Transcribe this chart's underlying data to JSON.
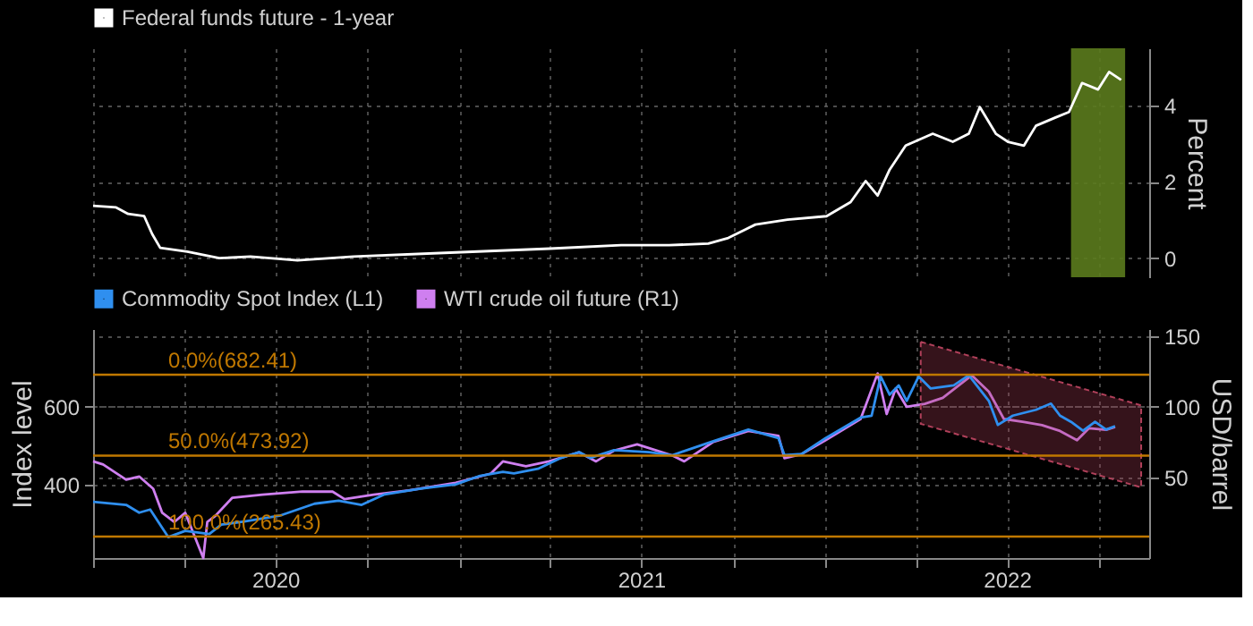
{
  "chart_data": [
    {
      "type": "line",
      "xlim": [
        "2020-01-01",
        "2022-11-20"
      ],
      "xticks": [
        {
          "value": "2020-01-01",
          "label": null
        },
        {
          "value": "2020-04-01",
          "label": null
        },
        {
          "value": "2020-07-01",
          "label": null
        },
        {
          "value": "2020-10-01",
          "label": null
        },
        {
          "value": "2021-01-01",
          "label": null
        },
        {
          "value": "2021-04-01",
          "label": null
        },
        {
          "value": "2021-07-01",
          "label": null
        },
        {
          "value": "2021-10-01",
          "label": null
        },
        {
          "value": "2022-01-01",
          "label": null
        },
        {
          "value": "2022-04-01",
          "label": null
        },
        {
          "value": "2022-07-01",
          "label": null
        },
        {
          "value": "2022-10-01",
          "label": null
        }
      ],
      "y2lim": [
        -0.5,
        5.5
      ],
      "y2ticks": [
        0,
        2,
        4
      ],
      "y2label": "Percent",
      "grid": true,
      "legend": "top left",
      "tick_labels": "y",
      "bands": [
        {
          "axis": "x",
          "from": "2022-09-03",
          "to": "2022-10-27",
          "color": "#5b7b1d"
        }
      ],
      "series": [
        {
          "name": "Federal funds future - 1-year",
          "color": "#ffffff",
          "axis": "y2",
          "x": [
            "2020-01-01",
            "2020-01-24",
            "2020-02-05",
            "2020-02-21",
            "2020-02-29",
            "2020-03-08",
            "2020-04-04",
            "2020-05-06",
            "2020-06-06",
            "2020-07-23",
            "2020-09-17",
            "2020-12-28",
            "2021-04-01",
            "2021-06-11",
            "2021-07-29",
            "2021-09-06",
            "2021-09-26",
            "2021-10-23",
            "2021-11-24",
            "2022-01-02",
            "2022-01-26",
            "2022-02-10",
            "2022-02-22",
            "2022-03-06",
            "2022-03-22",
            "2022-04-18",
            "2022-05-08",
            "2022-05-24",
            "2022-06-04",
            "2022-06-20",
            "2022-07-02",
            "2022-07-18",
            "2022-07-30",
            "2022-08-18",
            "2022-09-01",
            "2022-09-14",
            "2022-09-30",
            "2022-10-11",
            "2022-10-23"
          ],
          "values": [
            1.37,
            1.33,
            1.16,
            1.1,
            0.63,
            0.27,
            0.17,
            0,
            0.04,
            -0.06,
            0.04,
            0.15,
            0.25,
            0.34,
            0.34,
            0.38,
            0.53,
            0.88,
            1.01,
            1.1,
            1.47,
            2.02,
            1.64,
            2.32,
            2.95,
            3.26,
            3.05,
            3.26,
            3.96,
            3.26,
            3.05,
            2.95,
            3.47,
            3.68,
            3.83,
            4.59,
            4.42,
            4.88,
            4.67
          ]
        }
      ]
    },
    {
      "type": "line",
      "xlim": [
        "2020-01-01",
        "2022-11-20"
      ],
      "xticks": [
        {
          "value": "2020-01-01",
          "label": null
        },
        {
          "value": "2020-04-01",
          "label": null
        },
        {
          "value": "2020-07-01",
          "label": "2020"
        },
        {
          "value": "2020-10-01",
          "label": null
        },
        {
          "value": "2021-01-01",
          "label": null
        },
        {
          "value": "2021-04-01",
          "label": null
        },
        {
          "value": "2021-07-01",
          "label": "2021"
        },
        {
          "value": "2021-10-01",
          "label": null
        },
        {
          "value": "2022-01-01",
          "label": null
        },
        {
          "value": "2022-04-01",
          "label": null
        },
        {
          "value": "2022-07-01",
          "label": "2022"
        },
        {
          "value": "2022-10-01",
          "label": null
        }
      ],
      "ylim": [
        210,
        800
      ],
      "yticks": [
        400,
        600
      ],
      "ylabel": "Index level",
      "y2lim": [
        -7,
        155
      ],
      "y2ticks": [
        50,
        100,
        150
      ],
      "y2label": "USD/barrel",
      "grid": true,
      "legend": "top left",
      "ref_lines": [
        {
          "axis": "y",
          "value": 682.41,
          "label": "0.0%(682.41)",
          "color": "#c07800"
        },
        {
          "axis": "y",
          "value": 473.92,
          "label": "50.0%(473.92)",
          "color": "#c07800"
        },
        {
          "axis": "y",
          "value": 265.43,
          "label": "100.0%(265.43)",
          "color": "#c07800"
        }
      ],
      "series": [
        {
          "name": "Commodity Spot Index (L1)",
          "color": "#2f8fef",
          "axis": "y",
          "x": [
            "2020-01-01",
            "2020-02-03",
            "2020-02-16",
            "2020-02-27",
            "2020-03-16",
            "2020-04-02",
            "2020-04-26",
            "2020-05-08",
            "2020-05-31",
            "2020-07-05",
            "2020-08-09",
            "2020-09-02",
            "2020-09-25",
            "2020-10-18",
            "2020-11-23",
            "2020-12-28",
            "2021-01-20",
            "2021-02-13",
            "2021-02-24",
            "2021-03-20",
            "2021-04-12",
            "2021-04-30",
            "2021-05-11",
            "2021-06-04",
            "2021-07-09",
            "2021-08-01",
            "2021-09-05",
            "2021-10-16",
            "2021-11-15",
            "2021-11-21",
            "2021-12-08",
            "2022-01-01",
            "2022-02-05",
            "2022-02-16",
            "2022-02-25",
            "2022-03-06",
            "2022-03-15",
            "2022-03-23",
            "2022-04-04",
            "2022-04-16",
            "2022-05-09",
            "2022-05-24",
            "2022-06-13",
            "2022-06-22",
            "2022-07-07",
            "2022-07-30",
            "2022-08-14",
            "2022-08-23",
            "2022-09-03",
            "2022-09-15",
            "2022-09-27",
            "2022-10-08",
            "2022-10-17"
          ],
          "values": [
            355,
            347,
            327,
            335,
            264,
            280,
            272,
            296,
            304,
            319,
            350,
            358,
            347,
            374,
            389,
            400,
            421,
            432,
            428,
            440,
            468,
            483,
            468,
            488,
            483,
            475,
            506,
            541,
            519,
            475,
            478,
            519,
            572,
            577,
            678,
            631,
            655,
            615,
            678,
            647,
            655,
            681,
            615,
            553,
            577,
            592,
            608,
            577,
            561,
            538,
            561,
            541,
            550
          ]
        },
        {
          "name": "WTI crude oil future (R1)",
          "color": "#cf7ff0",
          "axis": "y2",
          "x": [
            "2020-01-01",
            "2020-01-11",
            "2020-02-03",
            "2020-02-16",
            "2020-03-01",
            "2020-03-10",
            "2020-03-22",
            "2020-04-02",
            "2020-04-20",
            "2020-04-24",
            "2020-05-02",
            "2020-05-19",
            "2020-06-18",
            "2020-07-28",
            "2020-08-27",
            "2020-09-08",
            "2020-10-07",
            "2020-11-11",
            "2020-12-28",
            "2021-02-01",
            "2021-02-13",
            "2021-03-08",
            "2021-03-31",
            "2021-04-30",
            "2021-05-17",
            "2021-06-04",
            "2021-06-27",
            "2021-08-01",
            "2021-08-13",
            "2021-09-11",
            "2021-10-16",
            "2021-11-15",
            "2021-11-21",
            "2021-12-08",
            "2022-01-01",
            "2022-02-05",
            "2022-02-22",
            "2022-03-03",
            "2022-03-12",
            "2022-03-23",
            "2022-04-10",
            "2022-04-28",
            "2022-05-27",
            "2022-06-13",
            "2022-06-28",
            "2022-07-18",
            "2022-08-05",
            "2022-08-23",
            "2022-09-09",
            "2022-09-21",
            "2022-10-08",
            "2022-10-17"
          ],
          "values": [
            61.4,
            59.2,
            48.5,
            50.7,
            42,
            25,
            18.5,
            25,
            -7,
            18.5,
            22.8,
            35.7,
            37.8,
            40,
            40,
            34.7,
            37.8,
            40.8,
            46.3,
            52.8,
            61.4,
            57.9,
            61.4,
            67.8,
            61.4,
            69.1,
            73.4,
            65.6,
            61.4,
            75.2,
            82.9,
            79.4,
            63.6,
            66.5,
            76.4,
            91.4,
            123.6,
            94.9,
            112.9,
            100,
            102.1,
            106.4,
            122.3,
            110.7,
            91.4,
            89.3,
            87.1,
            82.9,
            76.4,
            84.9,
            83.7,
            85.8
          ]
        },
        {
          "type": "line",
          "color": "#b0405a",
          "axis": "y2",
          "x": [
            "2022-04-06",
            "2022-11-12"
          ],
          "values": [
            null,
            null
          ],
          "upper": [
            146,
            101
          ],
          "lower": [
            88,
            43
          ]
        }
      ]
    }
  ]
}
